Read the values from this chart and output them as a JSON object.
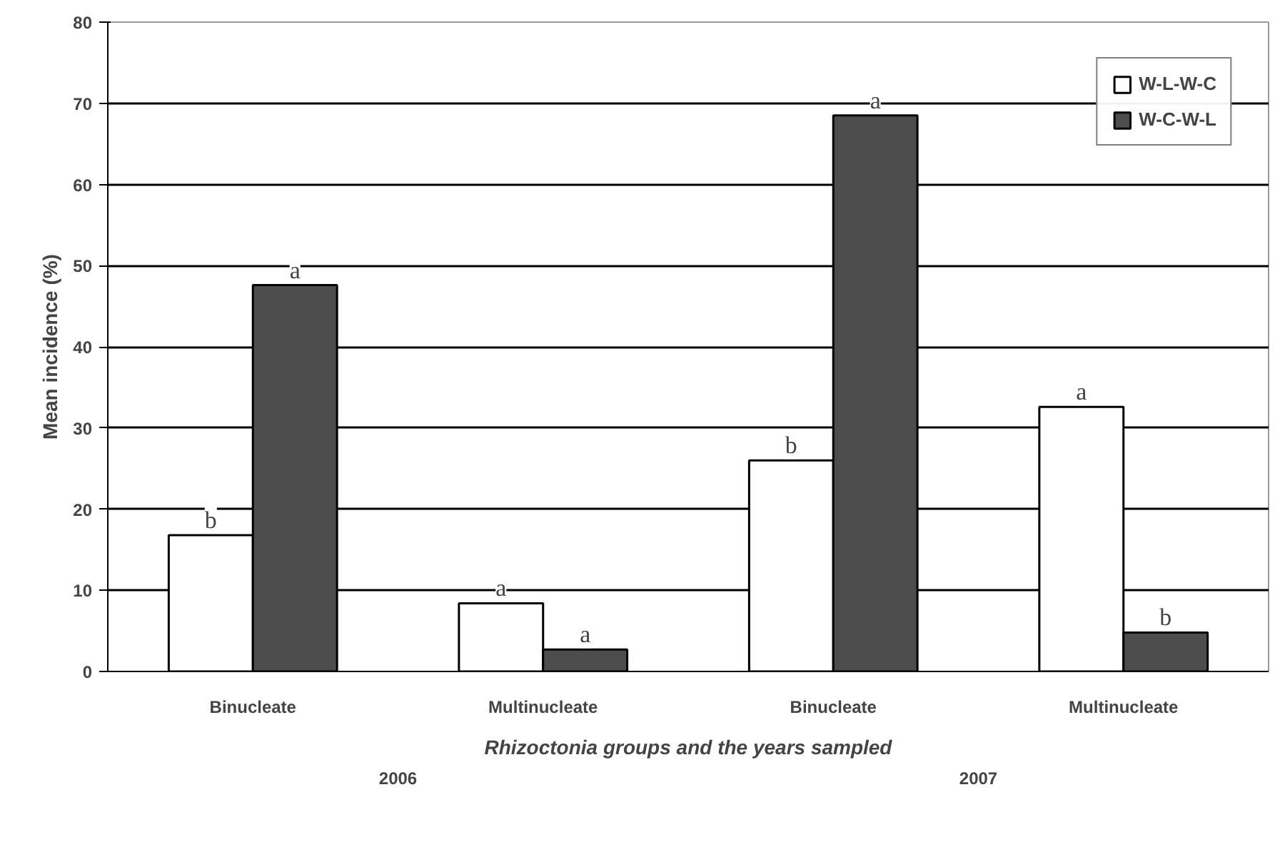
{
  "chart_data": {
    "type": "bar",
    "xlabel": "Rhizoctonia groups and the years sampled",
    "ylabel": "Mean incidence (%)",
    "categories": [
      "Binucleate",
      "Multinucleate",
      "Binucleate",
      "Multinucleate"
    ],
    "series": [
      {
        "name": "W-L-W-C",
        "color": "#ffffff",
        "values": [
          16.8,
          8.4,
          26.0,
          32.6
        ],
        "value_labels": [
          "b",
          "a",
          "b",
          "a"
        ]
      },
      {
        "name": "W-C-W-L",
        "color": "#4d4d4d",
        "values": [
          47.6,
          2.7,
          68.5,
          4.8
        ],
        "value_labels": [
          "a",
          "a",
          "a",
          "b"
        ]
      }
    ],
    "annotations": [
      "2006",
      "2007"
    ],
    "ylim": [
      0,
      80
    ],
    "yticks": [
      0,
      10,
      20,
      30,
      40,
      50,
      60,
      70,
      80
    ],
    "grid": "y",
    "legend": "top right"
  }
}
